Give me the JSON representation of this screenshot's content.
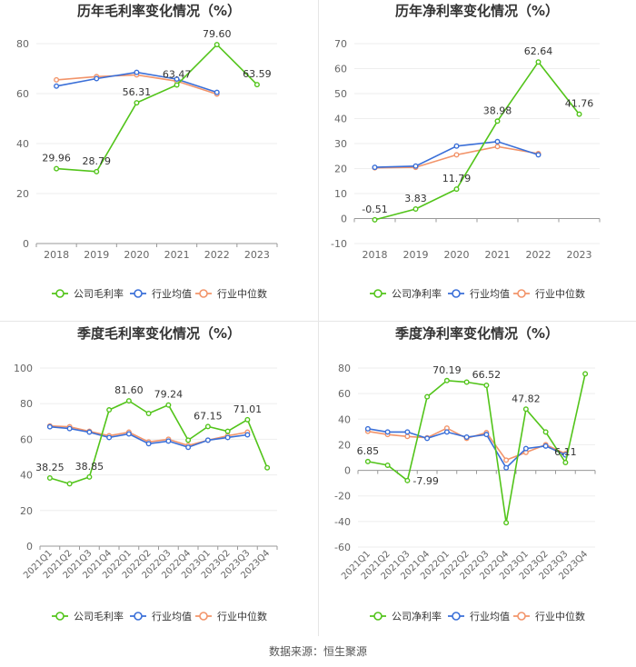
{
  "colors": {
    "company": "#52c41a",
    "industry_avg": "#3a6fd8",
    "industry_median": "#f2946a",
    "axis": "#999999",
    "grid": "#eeeeee",
    "text": "#333333",
    "tick": "#666666"
  },
  "legend_labels": {
    "industry_avg": "行业均值",
    "industry_median": "行业中位数"
  },
  "source": "数据来源：恒生聚源",
  "chart_data": [
    {
      "type": "line",
      "title": "历年毛利率变化情况（%）",
      "categories": [
        "2018",
        "2019",
        "2020",
        "2021",
        "2022",
        "2023"
      ],
      "ylim": [
        0,
        80
      ],
      "yticks": [
        0,
        20,
        40,
        60,
        80
      ],
      "rotate_labels": false,
      "series": [
        {
          "key": "company",
          "name": "公司毛利率",
          "values": [
            29.96,
            28.79,
            56.31,
            63.47,
            79.6,
            63.59
          ]
        },
        {
          "key": "industry_avg",
          "name": "行业均值",
          "values": [
            63.0,
            66.0,
            68.5,
            65.8,
            60.5,
            null
          ]
        },
        {
          "key": "industry_median",
          "name": "行业中位数",
          "values": [
            65.5,
            66.8,
            67.5,
            65.0,
            59.8,
            null
          ]
        }
      ],
      "data_labels": [
        {
          "i": 0,
          "text": "29.96",
          "pos": "above"
        },
        {
          "i": 1,
          "text": "28.79",
          "pos": "above"
        },
        {
          "i": 2,
          "text": "56.31",
          "pos": "above"
        },
        {
          "i": 3,
          "text": "63.47",
          "pos": "above"
        },
        {
          "i": 4,
          "text": "79.60",
          "pos": "above"
        },
        {
          "i": 5,
          "text": "63.59",
          "pos": "above"
        }
      ]
    },
    {
      "type": "line",
      "title": "历年净利率变化情况（%）",
      "categories": [
        "2018",
        "2019",
        "2020",
        "2021",
        "2022",
        "2023"
      ],
      "ylim": [
        -10,
        70
      ],
      "yticks": [
        -10,
        0,
        10,
        20,
        30,
        40,
        50,
        60,
        70
      ],
      "rotate_labels": false,
      "series": [
        {
          "key": "company",
          "name": "公司净利率",
          "values": [
            -0.51,
            3.83,
            11.79,
            38.98,
            62.64,
            41.76
          ]
        },
        {
          "key": "industry_avg",
          "name": "行业均值",
          "values": [
            20.5,
            21.0,
            29.0,
            30.8,
            25.5,
            null
          ]
        },
        {
          "key": "industry_median",
          "name": "行业中位数",
          "values": [
            20.3,
            20.5,
            25.5,
            28.8,
            26.0,
            null
          ]
        }
      ],
      "data_labels": [
        {
          "i": 0,
          "text": "-0.51",
          "pos": "above"
        },
        {
          "i": 1,
          "text": "3.83",
          "pos": "above"
        },
        {
          "i": 2,
          "text": "11.79",
          "pos": "above"
        },
        {
          "i": 3,
          "text": "38.98",
          "pos": "above"
        },
        {
          "i": 4,
          "text": "62.64",
          "pos": "above"
        },
        {
          "i": 5,
          "text": "41.76",
          "pos": "above"
        }
      ]
    },
    {
      "type": "line",
      "title": "季度毛利率变化情况（%）",
      "categories": [
        "2021Q1",
        "2021Q2",
        "2021Q3",
        "2021Q4",
        "2022Q1",
        "2022Q2",
        "2022Q3",
        "2022Q4",
        "2023Q1",
        "2023Q2",
        "2023Q3",
        "2023Q4"
      ],
      "ylim": [
        0,
        100
      ],
      "yticks": [
        0,
        20,
        40,
        60,
        80,
        100
      ],
      "rotate_labels": true,
      "series": [
        {
          "key": "company",
          "name": "公司毛利率",
          "values": [
            38.25,
            35.0,
            38.85,
            76.5,
            81.6,
            74.5,
            79.24,
            59.5,
            67.15,
            64.5,
            71.01,
            44.0
          ]
        },
        {
          "key": "industry_avg",
          "name": "行业均值",
          "values": [
            67.0,
            66.0,
            64.0,
            61.0,
            63.0,
            57.5,
            59.0,
            55.5,
            59.5,
            61.0,
            62.5,
            null
          ]
        },
        {
          "key": "industry_median",
          "name": "行业中位数",
          "values": [
            67.5,
            67.0,
            64.5,
            62.0,
            64.0,
            58.5,
            60.0,
            56.5,
            59.5,
            62.0,
            64.0,
            null
          ]
        }
      ],
      "data_labels": [
        {
          "i": 0,
          "text": "38.25",
          "pos": "above"
        },
        {
          "i": 2,
          "text": "38.85",
          "pos": "above"
        },
        {
          "i": 4,
          "text": "81.60",
          "pos": "above"
        },
        {
          "i": 6,
          "text": "79.24",
          "pos": "above"
        },
        {
          "i": 8,
          "text": "67.15",
          "pos": "above"
        },
        {
          "i": 10,
          "text": "71.01",
          "pos": "above"
        }
      ]
    },
    {
      "type": "line",
      "title": "季度净利率变化情况（%）",
      "categories": [
        "2021Q1",
        "2021Q2",
        "2021Q3",
        "2021Q4",
        "2022Q1",
        "2022Q2",
        "2022Q3",
        "2022Q4",
        "2023Q1",
        "2023Q2",
        "2023Q3",
        "2023Q4"
      ],
      "ylim": [
        -60,
        80
      ],
      "yticks": [
        -60,
        -40,
        -20,
        0,
        20,
        40,
        60,
        80
      ],
      "rotate_labels": true,
      "series": [
        {
          "key": "company",
          "name": "公司净利率",
          "values": [
            6.85,
            4.0,
            -7.99,
            57.5,
            70.19,
            69.0,
            66.52,
            -41.0,
            47.82,
            30.0,
            6.11,
            75.5
          ]
        },
        {
          "key": "industry_avg",
          "name": "行业均值",
          "values": [
            32.5,
            30.0,
            30.0,
            25.0,
            30.0,
            26.0,
            28.0,
            2.0,
            17.0,
            19.0,
            12.0,
            null
          ]
        },
        {
          "key": "industry_median",
          "name": "行业中位数",
          "values": [
            30.5,
            28.0,
            26.5,
            25.5,
            33.0,
            25.0,
            29.5,
            8.0,
            14.0,
            20.0,
            13.0,
            null
          ]
        }
      ],
      "data_labels": [
        {
          "i": 0,
          "text": "6.85",
          "pos": "above"
        },
        {
          "i": 2,
          "text": "-7.99",
          "pos": "right"
        },
        {
          "i": 4,
          "text": "70.19",
          "pos": "above"
        },
        {
          "i": 6,
          "text": "66.52",
          "pos": "above"
        },
        {
          "i": 8,
          "text": "47.82",
          "pos": "above"
        },
        {
          "i": 10,
          "text": "6.11",
          "pos": "above"
        }
      ]
    }
  ]
}
